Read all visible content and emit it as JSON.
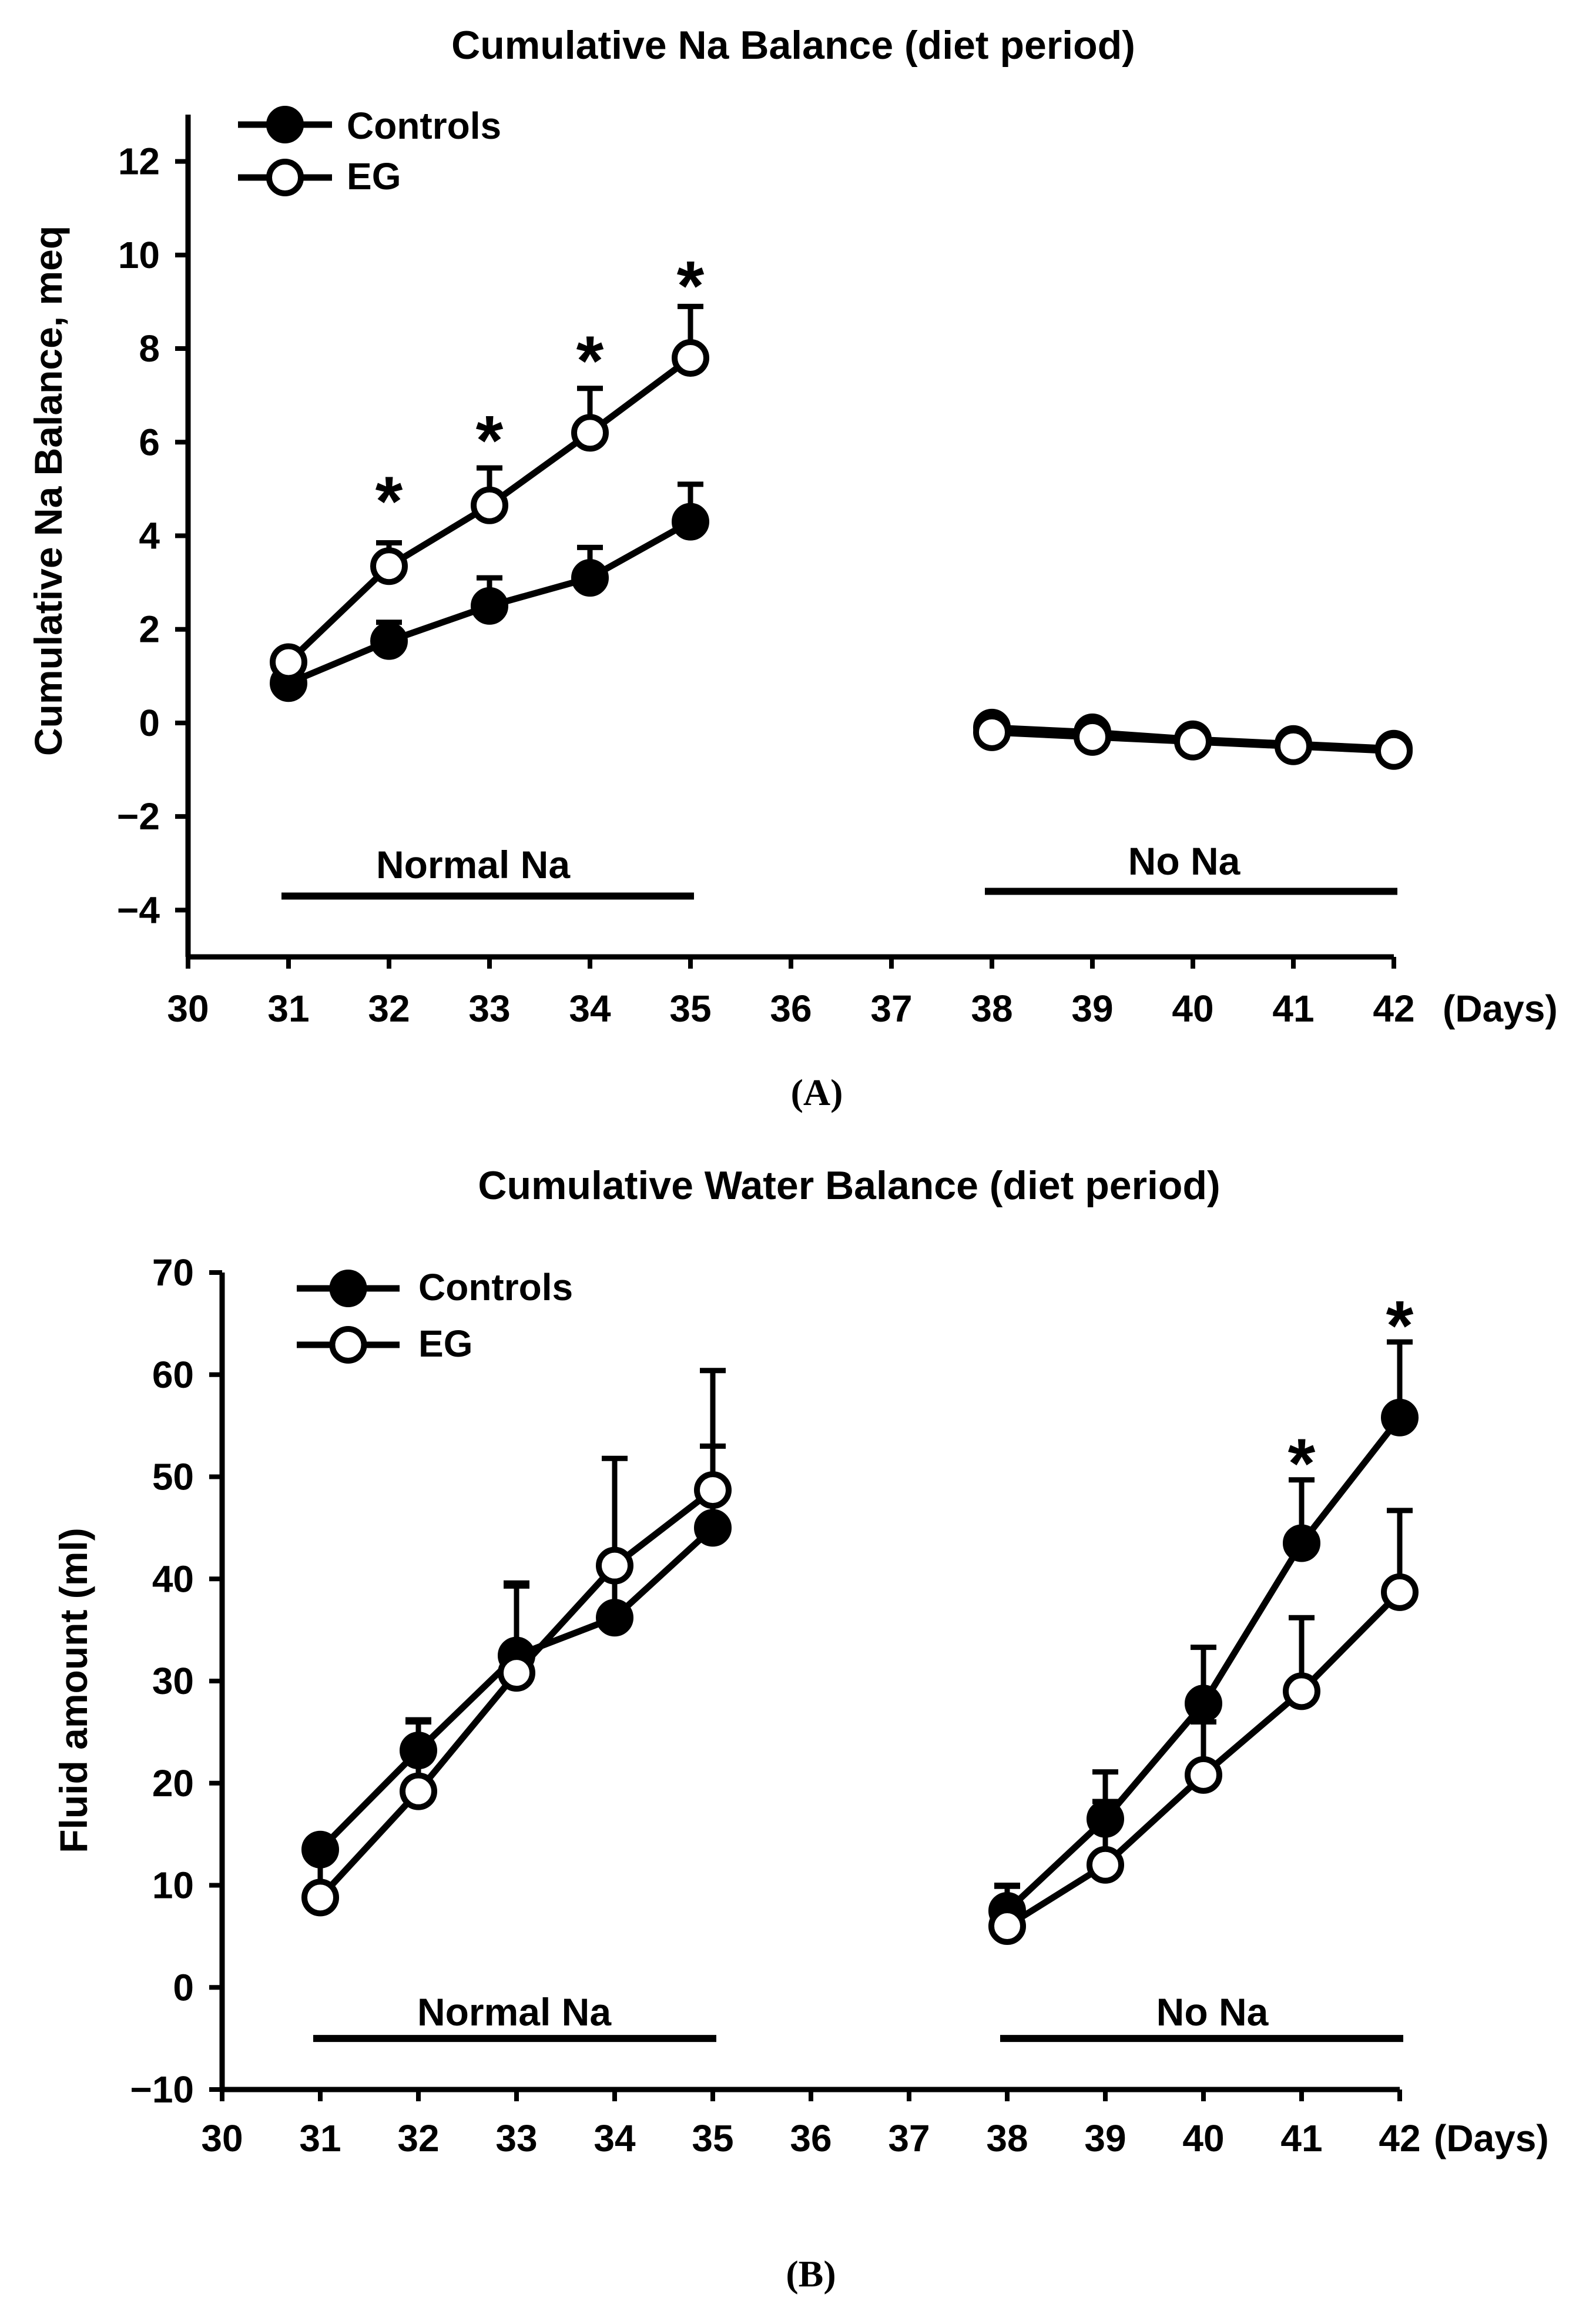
{
  "chart_data": [
    {
      "type": "line",
      "title": "Cumulative Na Balance (diet period)",
      "panel_label": "(A)",
      "xlabel": "",
      "x_unit_label": "(Days)",
      "ylabel": "Cumulative Na Balance, meq",
      "xlim": [
        30,
        42
      ],
      "ylim": [
        -5,
        13
      ],
      "x_ticks": [
        30,
        31,
        32,
        33,
        34,
        35,
        36,
        37,
        38,
        39,
        40,
        41,
        42
      ],
      "y_ticks": [
        -4,
        -2,
        0,
        2,
        4,
        6,
        8,
        10,
        12
      ],
      "y_tick_labels": [
        "−4",
        "−2",
        "0",
        "2",
        "4",
        "6",
        "8",
        "10",
        "12"
      ],
      "grid": false,
      "legend_position": "top-left",
      "series": [
        {
          "name": "Controls",
          "marker": "filled-circle",
          "segments": [
            {
              "x": [
                31,
                32,
                33,
                34,
                35
              ],
              "y": [
                0.85,
                1.75,
                2.5,
                3.1,
                4.3
              ],
              "err": [
                0.0,
                0.4,
                0.6,
                0.65,
                0.8
              ]
            },
            {
              "x": [
                38,
                39,
                40,
                41,
                42
              ],
              "y": [
                -0.1,
                -0.2,
                -0.35,
                -0.45,
                -0.55
              ],
              "err": [
                0,
                0,
                0,
                0,
                0
              ]
            }
          ]
        },
        {
          "name": "EG",
          "marker": "open-circle",
          "segments": [
            {
              "x": [
                31,
                32,
                33,
                34,
                35
              ],
              "y": [
                1.3,
                3.35,
                4.65,
                6.2,
                7.8
              ],
              "err": [
                0.0,
                0.5,
                0.8,
                0.95,
                1.1
              ]
            },
            {
              "x": [
                38,
                39,
                40,
                41,
                42
              ],
              "y": [
                -0.2,
                -0.3,
                -0.4,
                -0.5,
                -0.6
              ],
              "err": [
                0,
                0,
                0,
                0,
                0
              ]
            }
          ]
        }
      ],
      "significance": {
        "symbol": "*",
        "x": [
          32,
          33,
          34,
          35
        ],
        "y": [
          5.0,
          6.3,
          8.0,
          9.6
        ]
      },
      "periods": [
        {
          "label": "Normal Na",
          "x_start": 31,
          "x_end": 35,
          "y": -3.7
        },
        {
          "label": "No Na",
          "x_start": 38,
          "x_end": 42,
          "y": -3.6
        }
      ]
    },
    {
      "type": "line",
      "title": "Cumulative Water Balance (diet period)",
      "panel_label": "(B)",
      "xlabel": "",
      "x_unit_label": "(Days)",
      "ylabel": "Fluid amount (ml)",
      "xlim": [
        30,
        42
      ],
      "ylim": [
        -10,
        70
      ],
      "x_ticks": [
        30,
        31,
        32,
        33,
        34,
        35,
        36,
        37,
        38,
        39,
        40,
        41,
        42
      ],
      "y_ticks": [
        -10,
        0,
        10,
        20,
        30,
        40,
        50,
        60,
        70
      ],
      "y_tick_labels": [
        "−10",
        "0",
        "10",
        "20",
        "30",
        "40",
        "50",
        "60",
        "70"
      ],
      "grid": false,
      "legend_position": "top-left",
      "series": [
        {
          "name": "Controls",
          "marker": "filled-circle",
          "segments": [
            {
              "x": [
                31,
                32,
                33,
                34,
                35
              ],
              "y": [
                13.5,
                23.2,
                32.5,
                36.2,
                45.0
              ],
              "err": [
                0,
                2.8,
                6.8,
                5.3,
                8.0
              ]
            },
            {
              "x": [
                38,
                39,
                40,
                41,
                42
              ],
              "y": [
                7.5,
                16.5,
                27.8,
                43.5,
                55.8
              ],
              "err": [
                2.5,
                4.6,
                5.5,
                6.2,
                7.4
              ]
            }
          ]
        },
        {
          "name": "EG",
          "marker": "open-circle",
          "segments": [
            {
              "x": [
                31,
                32,
                33,
                34,
                35
              ],
              "y": [
                8.8,
                19.2,
                30.8,
                41.3,
                48.7
              ],
              "err": [
                4.0,
                7.0,
                8.8,
                10.5,
                11.7
              ]
            },
            {
              "x": [
                38,
                39,
                40,
                41,
                42
              ],
              "y": [
                6.0,
                12.0,
                20.8,
                29.0,
                38.7
              ],
              "err": [
                3.9,
                6.2,
                5.2,
                7.2,
                8.0
              ]
            }
          ]
        }
      ],
      "significance": {
        "symbol": "*",
        "x": [
          41,
          42
        ],
        "y": [
          52.5,
          66.0
        ]
      },
      "periods": [
        {
          "label": "Normal Na",
          "x_start": 31,
          "x_end": 35,
          "y": -5.0
        },
        {
          "label": "No Na",
          "x_start": 38,
          "x_end": 42,
          "y": -5.0
        }
      ]
    }
  ]
}
